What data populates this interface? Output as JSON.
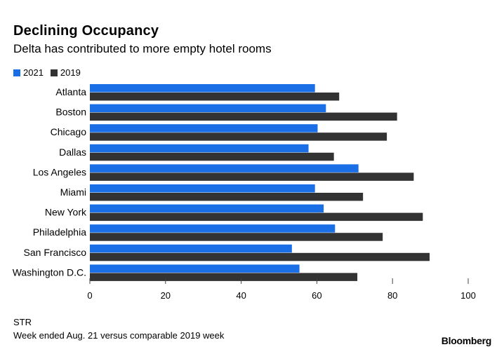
{
  "title": "Declining Occupancy",
  "subtitle": "Delta has contributed to more empty hotel rooms",
  "legend": [
    {
      "label": "2021",
      "color": "#1a6ee6"
    },
    {
      "label": "2019",
      "color": "#333333"
    }
  ],
  "footer": {
    "source": "STR",
    "note": "Week ended Aug. 21 versus comparable 2019 week",
    "brand": "Bloomberg"
  },
  "chart_data": {
    "type": "bar",
    "orientation": "horizontal",
    "categories": [
      "Atlanta",
      "Boston",
      "Chicago",
      "Dallas",
      "Los Angeles",
      "Miami",
      "New York",
      "Philadelphia",
      "San Francisco",
      "Washington D.C."
    ],
    "series": [
      {
        "name": "2021",
        "color": "#1a6ee6",
        "values": [
          59.5,
          62.4,
          60.2,
          57.8,
          71.0,
          59.5,
          61.8,
          64.8,
          53.4,
          55.4
        ]
      },
      {
        "name": "2019",
        "color": "#333333",
        "values": [
          65.9,
          81.2,
          78.5,
          64.5,
          85.6,
          72.2,
          88.0,
          77.4,
          89.8,
          70.7
        ]
      }
    ],
    "xlim": [
      0,
      100
    ],
    "xticks": [
      "0",
      "20",
      "40",
      "60",
      "80",
      "100"
    ],
    "grid": false,
    "legend_position": "top-left"
  }
}
